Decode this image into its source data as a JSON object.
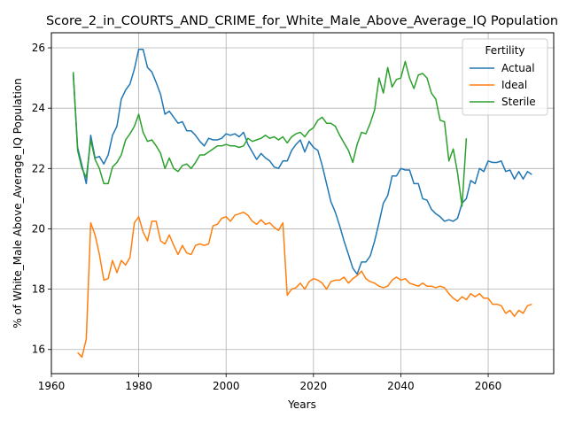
{
  "chart_data": {
    "type": "line",
    "title": "Score_2_in_COURTS_AND_CRIME_for_White_Male_Above_Average_IQ Population",
    "xlabel": "Years",
    "ylabel": "% of White_Male Above_Average_IQ Population",
    "xlim": [
      1960,
      2075
    ],
    "ylim": [
      15.2,
      26.5
    ],
    "xticks": [
      1960,
      1980,
      2000,
      2020,
      2040,
      2060
    ],
    "yticks": [
      16,
      18,
      20,
      22,
      24,
      26
    ],
    "grid": true,
    "legend": {
      "title": "Fertility",
      "placement": "top-right"
    },
    "series": [
      {
        "name": "Actual",
        "color": "#1f77b4",
        "x": [
          1965,
          1966,
          1967,
          1968,
          1969,
          1970,
          1971,
          1972,
          1973,
          1974,
          1975,
          1976,
          1977,
          1978,
          1979,
          1980,
          1981,
          1982,
          1983,
          1984,
          1985,
          1986,
          1987,
          1988,
          1989,
          1990,
          1991,
          1992,
          1993,
          1994,
          1995,
          1996,
          1997,
          1998,
          1999,
          2000,
          2001,
          2002,
          2003,
          2004,
          2005,
          2006,
          2007,
          2008,
          2009,
          2010,
          2011,
          2012,
          2013,
          2014,
          2015,
          2016,
          2017,
          2018,
          2019,
          2020,
          2021,
          2022,
          2023,
          2024,
          2025,
          2026,
          2027,
          2028,
          2029,
          2030,
          2031,
          2032,
          2033,
          2034,
          2035,
          2036,
          2037,
          2038,
          2039,
          2040,
          2041,
          2042,
          2043,
          2044,
          2045,
          2046,
          2047,
          2048,
          2049,
          2050,
          2051,
          2052,
          2053,
          2054,
          2055,
          2056,
          2057,
          2058,
          2059,
          2060,
          2061,
          2062,
          2063,
          2064,
          2065,
          2066,
          2067,
          2068,
          2069,
          2070
        ],
        "y": [
          25.1,
          22.7,
          22.1,
          21.5,
          23.1,
          22.35,
          22.4,
          22.15,
          22.45,
          23.1,
          23.4,
          24.3,
          24.6,
          24.8,
          25.3,
          25.95,
          25.95,
          25.35,
          25.2,
          24.85,
          24.45,
          23.8,
          23.9,
          23.7,
          23.5,
          23.55,
          23.25,
          23.25,
          23.1,
          22.9,
          22.75,
          23.0,
          22.95,
          22.95,
          23.0,
          23.15,
          23.1,
          23.15,
          23.05,
          23.2,
          22.8,
          22.55,
          22.3,
          22.5,
          22.35,
          22.25,
          22.05,
          22.0,
          22.25,
          22.25,
          22.6,
          22.8,
          22.95,
          22.55,
          22.9,
          22.7,
          22.6,
          22.1,
          21.5,
          20.9,
          20.55,
          20.1,
          19.6,
          19.15,
          18.7,
          18.5,
          18.9,
          18.9,
          19.1,
          19.6,
          20.2,
          20.85,
          21.1,
          21.75,
          21.75,
          22.0,
          21.95,
          21.95,
          21.5,
          21.5,
          21.0,
          20.95,
          20.65,
          20.5,
          20.4,
          20.25,
          20.3,
          20.25,
          20.35,
          20.85,
          21.0,
          21.6,
          21.5,
          22.0,
          21.9,
          22.25,
          22.2,
          22.2,
          22.25,
          21.9,
          21.95,
          21.65,
          21.9,
          21.65,
          21.9,
          21.8
        ]
      },
      {
        "name": "Ideal",
        "color": "#ff7f0e",
        "x": [
          1966,
          1967,
          1968,
          1969,
          1970,
          1971,
          1972,
          1973,
          1974,
          1975,
          1976,
          1977,
          1978,
          1979,
          1980,
          1981,
          1982,
          1983,
          1984,
          1985,
          1986,
          1987,
          1988,
          1989,
          1990,
          1991,
          1992,
          1993,
          1994,
          1995,
          1996,
          1997,
          1998,
          1999,
          2000,
          2001,
          2002,
          2003,
          2004,
          2005,
          2006,
          2007,
          2008,
          2009,
          2010,
          2011,
          2012,
          2013,
          2014,
          2015,
          2016,
          2017,
          2018,
          2019,
          2020,
          2021,
          2022,
          2023,
          2024,
          2025,
          2026,
          2027,
          2028,
          2029,
          2030,
          2031,
          2032,
          2033,
          2034,
          2035,
          2036,
          2037,
          2038,
          2039,
          2040,
          2041,
          2042,
          2043,
          2044,
          2045,
          2046,
          2047,
          2048,
          2049,
          2050,
          2051,
          2052,
          2053,
          2054,
          2055,
          2056,
          2057,
          2058,
          2059,
          2060,
          2061,
          2062,
          2063,
          2064,
          2065,
          2066,
          2067,
          2068,
          2069,
          2070
        ],
        "y": [
          15.9,
          15.75,
          16.35,
          20.2,
          19.8,
          19.15,
          18.3,
          18.35,
          18.95,
          18.55,
          18.95,
          18.8,
          19.05,
          20.2,
          20.4,
          19.9,
          19.6,
          20.25,
          20.25,
          19.6,
          19.5,
          19.8,
          19.45,
          19.15,
          19.45,
          19.2,
          19.15,
          19.45,
          19.5,
          19.45,
          19.5,
          20.1,
          20.15,
          20.35,
          20.4,
          20.25,
          20.45,
          20.5,
          20.55,
          20.45,
          20.25,
          20.15,
          20.3,
          20.15,
          20.2,
          20.05,
          19.95,
          20.2,
          17.8,
          18.0,
          18.05,
          18.2,
          18.0,
          18.25,
          18.35,
          18.3,
          18.2,
          18.0,
          18.25,
          18.3,
          18.3,
          18.4,
          18.2,
          18.35,
          18.45,
          18.6,
          18.35,
          18.25,
          18.2,
          18.1,
          18.05,
          18.1,
          18.3,
          18.4,
          18.3,
          18.35,
          18.2,
          18.15,
          18.1,
          18.2,
          18.1,
          18.1,
          18.05,
          18.1,
          18.05,
          17.85,
          17.7,
          17.6,
          17.75,
          17.65,
          17.85,
          17.75,
          17.85,
          17.7,
          17.7,
          17.5,
          17.5,
          17.45,
          17.2,
          17.3,
          17.1,
          17.3,
          17.2,
          17.45,
          17.5
        ]
      },
      {
        "name": "Sterile",
        "color": "#2ca02c",
        "x": [
          1965,
          1966,
          1967,
          1968,
          1969,
          1970,
          1971,
          1972,
          1973,
          1974,
          1975,
          1976,
          1977,
          1978,
          1979,
          1980,
          1981,
          1982,
          1983,
          1984,
          1985,
          1986,
          1987,
          1988,
          1989,
          1990,
          1991,
          1992,
          1993,
          1994,
          1995,
          1996,
          1997,
          1998,
          1999,
          2000,
          2001,
          2002,
          2003,
          2004,
          2005,
          2006,
          2007,
          2008,
          2009,
          2010,
          2011,
          2012,
          2013,
          2014,
          2015,
          2016,
          2017,
          2018,
          2019,
          2020,
          2021,
          2022,
          2023,
          2024,
          2025,
          2026,
          2027,
          2028,
          2029,
          2030,
          2031,
          2032,
          2033,
          2034,
          2035,
          2036,
          2037,
          2038,
          2039,
          2040,
          2041,
          2042,
          2043,
          2044,
          2045,
          2046,
          2047,
          2048,
          2049,
          2050,
          2051,
          2052,
          2053,
          2054,
          2055
        ],
        "y": [
          25.2,
          22.6,
          22.0,
          21.7,
          22.95,
          22.3,
          22.0,
          21.5,
          21.5,
          22.05,
          22.2,
          22.45,
          22.95,
          23.15,
          23.4,
          23.8,
          23.2,
          22.9,
          22.95,
          22.75,
          22.5,
          22.0,
          22.35,
          22.0,
          21.9,
          22.1,
          22.15,
          22.0,
          22.2,
          22.45,
          22.45,
          22.55,
          22.65,
          22.75,
          22.75,
          22.8,
          22.75,
          22.75,
          22.7,
          22.75,
          23.0,
          22.9,
          22.95,
          23.0,
          23.1,
          23.0,
          23.05,
          22.95,
          23.05,
          22.85,
          23.05,
          23.15,
          23.2,
          23.05,
          23.25,
          23.35,
          23.6,
          23.7,
          23.5,
          23.5,
          23.4,
          23.1,
          22.85,
          22.6,
          22.2,
          22.8,
          23.2,
          23.15,
          23.5,
          23.95,
          25.0,
          24.5,
          25.35,
          24.7,
          24.95,
          25.0,
          25.55,
          25.0,
          24.65,
          25.1,
          25.15,
          25.0,
          24.5,
          24.3,
          23.6,
          23.55,
          22.25,
          22.65,
          21.85,
          20.75,
          23.0
        ]
      }
    ]
  }
}
